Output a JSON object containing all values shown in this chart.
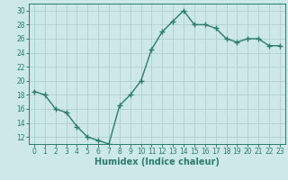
{
  "x": [
    0,
    1,
    2,
    3,
    4,
    5,
    6,
    7,
    8,
    9,
    10,
    11,
    12,
    13,
    14,
    15,
    16,
    17,
    18,
    19,
    20,
    21,
    22,
    23
  ],
  "y": [
    18.5,
    18,
    16,
    15.5,
    13.5,
    12,
    11.5,
    11,
    16.5,
    18,
    20,
    24.5,
    27,
    28.5,
    30,
    28,
    28,
    27.5,
    26,
    25.5,
    26,
    26,
    25,
    25
  ],
  "line_color": "#2d7a6e",
  "marker": "+",
  "marker_size": 4,
  "bg_color": "#cde8e8",
  "grid_color": "#b0cece",
  "title": "",
  "xlabel": "Humidex (Indice chaleur)",
  "xlabel_fontsize": 7,
  "ylabel": "",
  "xlim": [
    -0.5,
    23.5
  ],
  "ylim": [
    11,
    31
  ],
  "yticks": [
    12,
    14,
    16,
    18,
    20,
    22,
    24,
    26,
    28,
    30
  ],
  "xticks": [
    0,
    1,
    2,
    3,
    4,
    5,
    6,
    7,
    8,
    9,
    10,
    11,
    12,
    13,
    14,
    15,
    16,
    17,
    18,
    19,
    20,
    21,
    22,
    23
  ],
  "tick_color": "#2d7a6e",
  "tick_fontsize": 5.5,
  "axis_color": "#2d7a6e",
  "line_width": 1.0
}
